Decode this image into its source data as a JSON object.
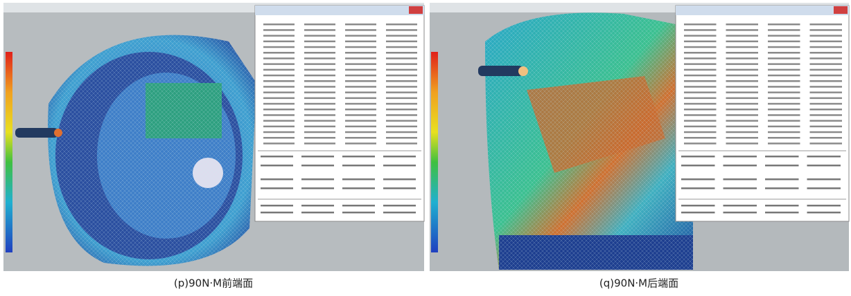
{
  "figure": {
    "panels": [
      {
        "caption": "(p)90N·M前端面"
      },
      {
        "caption": "(q)90N·M后端面"
      }
    ]
  }
}
